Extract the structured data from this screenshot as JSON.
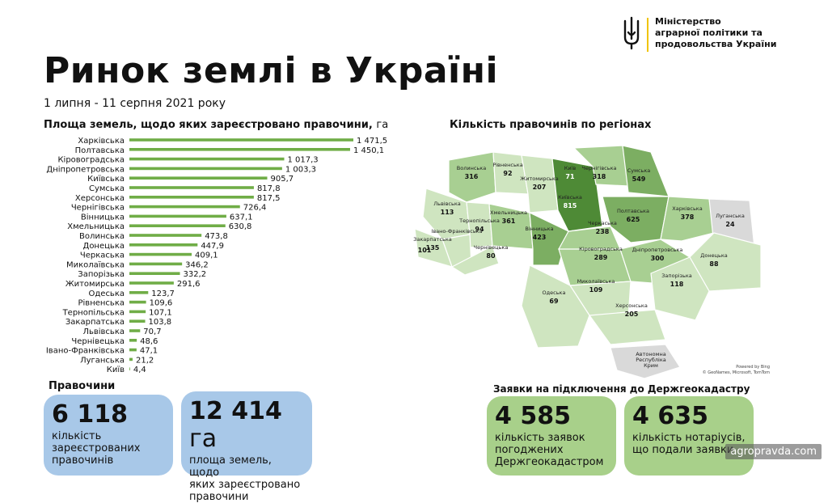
{
  "header": {
    "title": "Ринок землі в Україні",
    "subtitle": "1 липня - 11 серпня 2021 року",
    "ministry": [
      "Міністерство",
      "аграрної політики та",
      "продовольства України"
    ]
  },
  "bar_section": {
    "heading": "Площа земель, щодо яких зареєстровано правочини,",
    "unit": "га"
  },
  "map_section": {
    "heading": "Кількість правочинів по регіонах",
    "credit_line1": "Powered by Bing",
    "credit_line2": "© GeoNames, Microsoft, TomTom",
    "regions": [
      {
        "name": "Волинська",
        "value": "316",
        "level": 2
      },
      {
        "name": "Рівненська",
        "value": "92",
        "level": 1
      },
      {
        "name": "Житомирська",
        "value": "207",
        "level": 1
      },
      {
        "name": "Київ",
        "value": "71",
        "level": 4
      },
      {
        "name": "Київська",
        "value": "815",
        "level": 4
      },
      {
        "name": "Чернігівська",
        "value": "318",
        "level": 2
      },
      {
        "name": "Сумська",
        "value": "549",
        "level": 3
      },
      {
        "name": "Полтавська",
        "value": "625",
        "level": 3
      },
      {
        "name": "Харківська",
        "value": "378",
        "level": 2
      },
      {
        "name": "Луганська",
        "value": "24",
        "level": 0
      },
      {
        "name": "Донецька",
        "value": "88",
        "level": 1
      },
      {
        "name": "Львівська",
        "value": "113",
        "level": 1
      },
      {
        "name": "Тернопільська",
        "value": "94",
        "level": 1
      },
      {
        "name": "Хмельницька",
        "value": "361",
        "level": 2
      },
      {
        "name": "Вінницька",
        "value": "423",
        "level": 3
      },
      {
        "name": "Черкаська",
        "value": "238",
        "level": 2
      },
      {
        "name": "Івано-Франківська",
        "value": "",
        "level": 1
      },
      {
        "name": "Закарпатська",
        "value": "135",
        "level": 1
      },
      {
        "name": "Чернівецька",
        "value": "80",
        "level": 1
      },
      {
        "name": "Кіровоградська",
        "value": "289",
        "level": 2
      },
      {
        "name": "Дніпропетровська",
        "value": "300",
        "level": 2
      },
      {
        "name": "Запорізька",
        "value": "118",
        "level": 1
      },
      {
        "name": "Миколаївська",
        "value": "109",
        "level": 1
      },
      {
        "name": "Одеська",
        "value": "69",
        "level": 1
      },
      {
        "name": "Херсонська",
        "value": "205",
        "level": 1
      },
      {
        "name": "Автономна Республіка Крим",
        "value": "",
        "level": 0
      }
    ],
    "orphan_value": "101",
    "colors": [
      "#d9d9d9",
      "#cfe5c0",
      "#a8cf92",
      "#7cae62",
      "#4e8a36"
    ]
  },
  "chart_data": {
    "type": "bar",
    "orientation": "horizontal",
    "title": "Площа земель, щодо яких зареєстровано правочини, га",
    "categories": [
      "Харківська",
      "Полтавська",
      "Кіровоградська",
      "Дніпропетровська",
      "Київська",
      "Сумська",
      "Херсонська",
      "Чернігівська",
      "Вінницька",
      "Хмельницька",
      "Волинська",
      "Донецька",
      "Черкаська",
      "Миколаївська",
      "Запорізька",
      "Житомирська",
      "Одеська",
      "Рівненська",
      "Тернопільська",
      "Закарпатська",
      "Львівська",
      "Чернівецька",
      "Івано-Франківська",
      "Луганська",
      "Київ"
    ],
    "values": [
      1471.5,
      1450.1,
      1017.3,
      1003.3,
      905.7,
      817.8,
      817.5,
      726.4,
      637.1,
      630.8,
      473.8,
      447.9,
      409.1,
      346.2,
      332.2,
      291.6,
      123.7,
      109.6,
      107.1,
      103.8,
      70.7,
      48.6,
      47.1,
      21.2,
      4.4
    ],
    "labels": [
      "1 471,5",
      "1 450,1",
      "1 017,3",
      "1 003,3",
      "905,7",
      "817,8",
      "817,5",
      "726,4",
      "637,1",
      "630,8",
      "473,8",
      "447,9",
      "409,1",
      "346,2",
      "332,2",
      "291,6",
      "123,7",
      "109,6",
      "107,1",
      "103,8",
      "70,7",
      "48,6",
      "47,1",
      "21,2",
      "4,4"
    ],
    "xlim": [
      0,
      1471.5
    ],
    "bar_color": "#70ad47"
  },
  "pravochyny": {
    "title": "Правочини",
    "count": "6 118",
    "count_desc": [
      "кількість",
      "зареєстрованих",
      "правочинів"
    ],
    "area": "12 414",
    "area_unit": "га",
    "area_desc": [
      "площа земель, щодо",
      "яких зареєстровано",
      "правочини"
    ]
  },
  "zayavky": {
    "title": "Заявки на підключення до Держгеокадастру",
    "approved": "4 585",
    "approved_desc": [
      "кількість заявок",
      "погоджених",
      "Держгеокадастром"
    ],
    "notaries": "4 635",
    "notaries_desc": [
      "кількість нотаріусів,",
      "що подали заявки"
    ]
  },
  "watermark": "agropravda.com"
}
